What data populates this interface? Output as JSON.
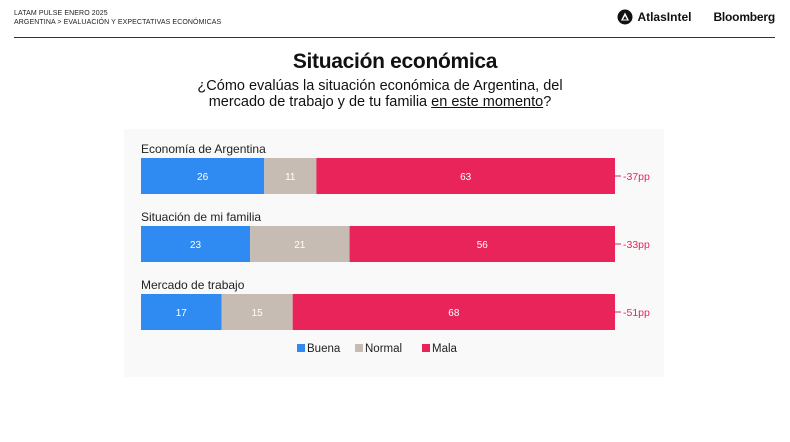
{
  "header": {
    "line1": "LATAM PULSE ENERO 2025",
    "line2": "ARGENTINA > EVALUACIÓN Y EXPECTATIVAS ECONÓMICAS",
    "brand1": "AtlasIntel",
    "brand2": "Bloomberg"
  },
  "title": "Situación económica",
  "subtitle": {
    "line1": "¿Cómo evalúas la situación económica de Argentina, del",
    "line2_before": "mercado de trabajo y de tu familia ",
    "line2_underlined": "en este momento",
    "line2_after": "?"
  },
  "colors": {
    "buena": "#2f8bf2",
    "normal": "#c7bcb4",
    "mala": "#e8245a",
    "net": "#e8245a"
  },
  "chart_data": {
    "type": "bar",
    "orientation": "horizontal",
    "stacked": true,
    "categories": [
      "Economía de Argentina",
      "Situación de mi familia",
      "Mercado de trabajo"
    ],
    "series": [
      {
        "name": "Buena",
        "values": [
          26,
          23,
          17
        ]
      },
      {
        "name": "Normal",
        "values": [
          11,
          21,
          15
        ]
      },
      {
        "name": "Mala",
        "values": [
          63,
          56,
          68
        ]
      }
    ],
    "net_labels": [
      "-37pp",
      "-33pp",
      "-51pp"
    ],
    "xlim": [
      0,
      100
    ],
    "legend_position": "bottom-center"
  }
}
